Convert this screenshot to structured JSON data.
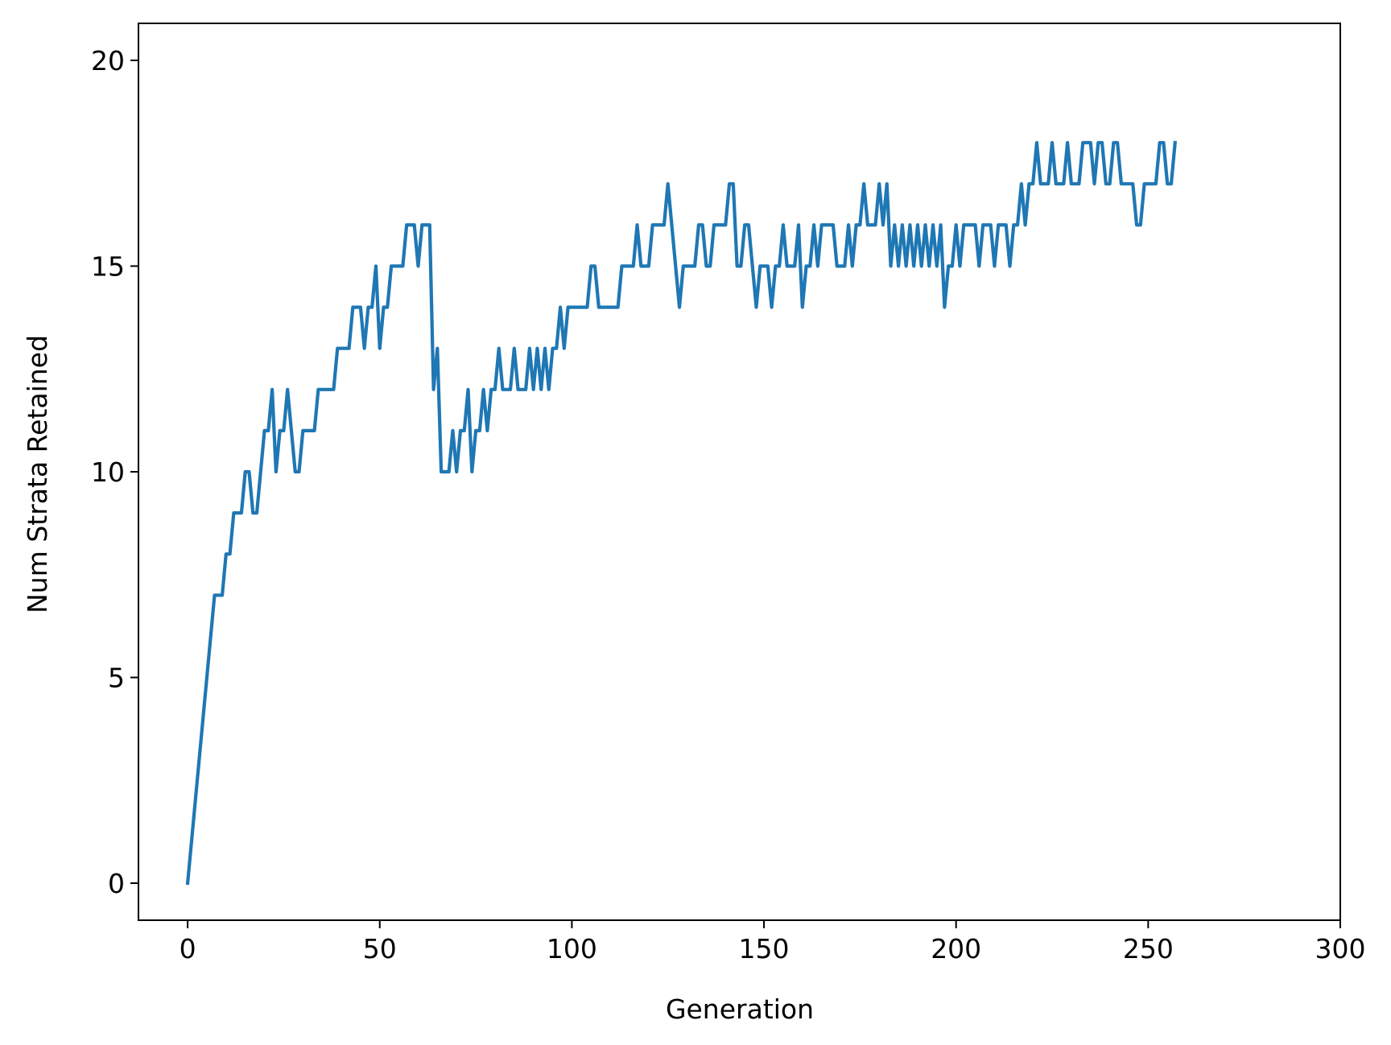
{
  "chart_data": {
    "type": "line",
    "title": "",
    "xlabel": "Generation",
    "ylabel": "Num Strata Retained",
    "xlim": [
      -12.8,
      300
    ],
    "ylim": [
      -0.9,
      20.9
    ],
    "xticks": [
      0,
      50,
      100,
      150,
      200,
      250,
      300
    ],
    "yticks": [
      0,
      5,
      10,
      15,
      20
    ],
    "xtick_labels": [
      "0",
      "50",
      "100",
      "150",
      "200",
      "250",
      "300"
    ],
    "ytick_labels": [
      "0",
      "5",
      "10",
      "15",
      "20"
    ],
    "grid": false,
    "legend": "none",
    "series": [
      {
        "color": "#1f77b4",
        "points": [
          [
            0,
            0
          ],
          [
            7,
            7
          ],
          [
            9,
            7
          ],
          [
            10,
            8
          ],
          [
            11,
            8
          ],
          [
            12,
            9
          ],
          [
            14,
            9
          ],
          [
            15,
            10
          ],
          [
            16,
            10
          ],
          [
            17,
            9
          ],
          [
            18,
            9
          ],
          [
            20,
            11
          ],
          [
            21,
            11
          ],
          [
            22,
            12
          ],
          [
            23,
            10
          ],
          [
            24,
            11
          ],
          [
            25,
            11
          ],
          [
            26,
            12
          ],
          [
            28,
            10
          ],
          [
            29,
            10
          ],
          [
            30,
            11
          ],
          [
            33,
            11
          ],
          [
            34,
            12
          ],
          [
            38,
            12
          ],
          [
            39,
            13
          ],
          [
            42,
            13
          ],
          [
            43,
            14
          ],
          [
            45,
            14
          ],
          [
            46,
            13
          ],
          [
            47,
            14
          ],
          [
            48,
            14
          ],
          [
            49,
            15
          ],
          [
            50,
            13
          ],
          [
            51,
            14
          ],
          [
            52,
            14
          ],
          [
            53,
            15
          ],
          [
            56,
            15
          ],
          [
            57,
            16
          ],
          [
            59,
            16
          ],
          [
            60,
            15
          ],
          [
            61,
            16
          ],
          [
            63,
            16
          ],
          [
            64,
            12
          ],
          [
            65,
            13
          ],
          [
            66,
            10
          ],
          [
            68,
            10
          ],
          [
            69,
            11
          ],
          [
            70,
            10
          ],
          [
            71,
            11
          ],
          [
            72,
            11
          ],
          [
            73,
            12
          ],
          [
            74,
            10
          ],
          [
            75,
            11
          ],
          [
            76,
            11
          ],
          [
            77,
            12
          ],
          [
            78,
            11
          ],
          [
            79,
            12
          ],
          [
            80,
            12
          ],
          [
            81,
            13
          ],
          [
            82,
            12
          ],
          [
            84,
            12
          ],
          [
            85,
            13
          ],
          [
            86,
            12
          ],
          [
            88,
            12
          ],
          [
            89,
            13
          ],
          [
            90,
            12
          ],
          [
            91,
            13
          ],
          [
            92,
            12
          ],
          [
            93,
            13
          ],
          [
            94,
            12
          ],
          [
            95,
            13
          ],
          [
            96,
            13
          ],
          [
            97,
            14
          ],
          [
            98,
            13
          ],
          [
            99,
            14
          ],
          [
            104,
            14
          ],
          [
            105,
            15
          ],
          [
            106,
            15
          ],
          [
            107,
            14
          ],
          [
            112,
            14
          ],
          [
            113,
            15
          ],
          [
            116,
            15
          ],
          [
            117,
            16
          ],
          [
            118,
            15
          ],
          [
            120,
            15
          ],
          [
            121,
            16
          ],
          [
            124,
            16
          ],
          [
            125,
            17
          ],
          [
            128,
            14
          ],
          [
            129,
            15
          ],
          [
            132,
            15
          ],
          [
            133,
            16
          ],
          [
            134,
            16
          ],
          [
            135,
            15
          ],
          [
            136,
            15
          ],
          [
            137,
            16
          ],
          [
            140,
            16
          ],
          [
            141,
            17
          ],
          [
            142,
            17
          ],
          [
            143,
            15
          ],
          [
            144,
            15
          ],
          [
            145,
            16
          ],
          [
            146,
            16
          ],
          [
            148,
            14
          ],
          [
            149,
            15
          ],
          [
            151,
            15
          ],
          [
            152,
            14
          ],
          [
            153,
            15
          ],
          [
            154,
            15
          ],
          [
            155,
            16
          ],
          [
            156,
            15
          ],
          [
            158,
            15
          ],
          [
            159,
            16
          ],
          [
            160,
            14
          ],
          [
            161,
            15
          ],
          [
            162,
            15
          ],
          [
            163,
            16
          ],
          [
            164,
            15
          ],
          [
            165,
            16
          ],
          [
            168,
            16
          ],
          [
            169,
            15
          ],
          [
            171,
            15
          ],
          [
            172,
            16
          ],
          [
            173,
            15
          ],
          [
            174,
            16
          ],
          [
            175,
            16
          ],
          [
            176,
            17
          ],
          [
            177,
            16
          ],
          [
            179,
            16
          ],
          [
            180,
            17
          ],
          [
            181,
            16
          ],
          [
            182,
            17
          ],
          [
            183,
            15
          ],
          [
            184,
            16
          ],
          [
            185,
            15
          ],
          [
            186,
            16
          ],
          [
            187,
            15
          ],
          [
            188,
            16
          ],
          [
            189,
            15
          ],
          [
            190,
            16
          ],
          [
            191,
            15
          ],
          [
            192,
            16
          ],
          [
            193,
            15
          ],
          [
            194,
            16
          ],
          [
            195,
            15
          ],
          [
            196,
            16
          ],
          [
            197,
            14
          ],
          [
            198,
            15
          ],
          [
            199,
            15
          ],
          [
            200,
            16
          ],
          [
            201,
            15
          ],
          [
            202,
            16
          ],
          [
            205,
            16
          ],
          [
            206,
            15
          ],
          [
            207,
            16
          ],
          [
            209,
            16
          ],
          [
            210,
            15
          ],
          [
            211,
            16
          ],
          [
            213,
            16
          ],
          [
            214,
            15
          ],
          [
            215,
            16
          ],
          [
            216,
            16
          ],
          [
            217,
            17
          ],
          [
            218,
            16
          ],
          [
            219,
            17
          ],
          [
            220,
            17
          ],
          [
            221,
            18
          ],
          [
            222,
            17
          ],
          [
            224,
            17
          ],
          [
            225,
            18
          ],
          [
            226,
            17
          ],
          [
            228,
            17
          ],
          [
            229,
            18
          ],
          [
            230,
            17
          ],
          [
            232,
            17
          ],
          [
            233,
            18
          ],
          [
            235,
            18
          ],
          [
            236,
            17
          ],
          [
            237,
            18
          ],
          [
            238,
            18
          ],
          [
            239,
            17
          ],
          [
            240,
            17
          ],
          [
            241,
            18
          ],
          [
            242,
            18
          ],
          [
            243,
            17
          ],
          [
            246,
            17
          ],
          [
            247,
            16
          ],
          [
            248,
            16
          ],
          [
            249,
            17
          ],
          [
            252,
            17
          ],
          [
            253,
            18
          ],
          [
            254,
            18
          ],
          [
            255,
            17
          ],
          [
            256,
            17
          ],
          [
            257,
            18
          ]
        ]
      }
    ]
  }
}
